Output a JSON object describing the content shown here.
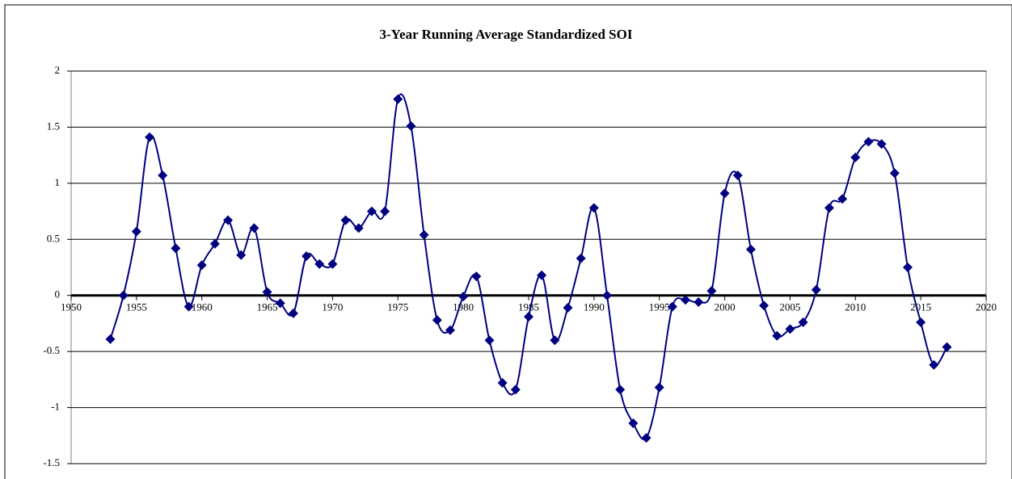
{
  "chart_data": {
    "type": "line",
    "title": "3-Year Running Average Standardized SOI",
    "x": [
      1953,
      1954,
      1955,
      1956,
      1957,
      1958,
      1959,
      1960,
      1961,
      1962,
      1963,
      1964,
      1965,
      1966,
      1967,
      1968,
      1969,
      1970,
      1971,
      1972,
      1973,
      1974,
      1975,
      1976,
      1977,
      1978,
      1979,
      1980,
      1981,
      1982,
      1983,
      1984,
      1985,
      1986,
      1987,
      1988,
      1989,
      1990,
      1991,
      1992,
      1993,
      1994,
      1995,
      1996,
      1997,
      1998,
      1999,
      2000,
      2001,
      2002,
      2003,
      2004,
      2005,
      2006,
      2007,
      2008,
      2009,
      2010,
      2011,
      2012,
      2013,
      2014,
      2015,
      2016,
      2017
    ],
    "series": [
      {
        "name": "SOI",
        "color": "#000080",
        "values": [
          -0.39,
          0.0,
          0.57,
          1.41,
          1.07,
          0.42,
          -0.1,
          0.27,
          0.46,
          0.67,
          0.36,
          0.6,
          0.03,
          -0.07,
          -0.16,
          0.35,
          0.28,
          0.28,
          0.67,
          0.6,
          0.75,
          0.75,
          1.75,
          1.51,
          0.54,
          -0.22,
          -0.31,
          -0.01,
          0.17,
          -0.4,
          -0.78,
          -0.84,
          -0.19,
          0.18,
          -0.4,
          -0.11,
          0.33,
          0.78,
          0.0,
          -0.84,
          -1.14,
          -1.27,
          -0.82,
          -0.1,
          -0.04,
          -0.06,
          0.04,
          0.91,
          1.07,
          0.41,
          -0.09,
          -0.36,
          -0.3,
          -0.24,
          0.05,
          0.78,
          0.86,
          1.23,
          1.37,
          1.35,
          1.09,
          0.25,
          -0.24,
          -0.62,
          -0.46
        ]
      }
    ],
    "xlim": [
      1950,
      2020
    ],
    "xticks": [
      1950,
      1955,
      1960,
      1965,
      1970,
      1975,
      1980,
      1985,
      1990,
      1995,
      2000,
      2005,
      2010,
      2015,
      2020
    ],
    "ylim": [
      -1.5,
      2
    ],
    "yticks": [
      -1.5,
      -1,
      -0.5,
      0,
      0.5,
      1,
      1.5,
      2
    ],
    "grid": true
  }
}
